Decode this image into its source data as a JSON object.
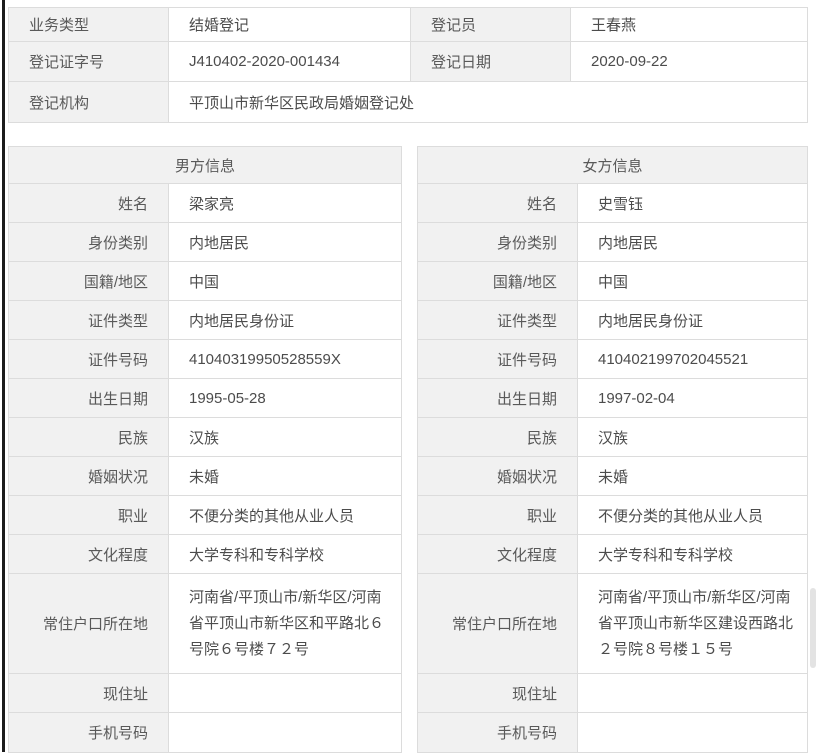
{
  "colors": {
    "label_bg": "#f1f1f1",
    "border": "#dcdcdc",
    "label_text": "#595959",
    "value_text": "#4c4c4c",
    "edge_line": "#1b1b1b"
  },
  "registration": {
    "business_type_label": "业务类型",
    "business_type": "结婚登记",
    "registrar_label": "登记员",
    "registrar": "王春燕",
    "cert_no_label": "登记证字号",
    "cert_no": "J410402-2020-001434",
    "reg_date_label": "登记日期",
    "reg_date": "2020-09-22",
    "agency_label": "登记机构",
    "agency": "平顶山市新华区民政局婚姻登记处"
  },
  "male_section": {
    "title": "男方信息",
    "fields": [
      {
        "key": "name",
        "label": "姓名",
        "value": "梁家亮"
      },
      {
        "key": "identity-category",
        "label": "身份类别",
        "value": "内地居民"
      },
      {
        "key": "nationality-region",
        "label": "国籍/地区",
        "value": "中国"
      },
      {
        "key": "id-type",
        "label": "证件类型",
        "value": "内地居民身份证"
      },
      {
        "key": "id-number",
        "label": "证件号码",
        "value": "41040319950528559X"
      },
      {
        "key": "birth-date",
        "label": "出生日期",
        "value": "1995-05-28"
      },
      {
        "key": "ethnicity",
        "label": "民族",
        "value": "汉族"
      },
      {
        "key": "marital-status",
        "label": "婚姻状况",
        "value": "未婚"
      },
      {
        "key": "occupation",
        "label": "职业",
        "value": "不便分类的其他从业人员"
      },
      {
        "key": "education-level",
        "label": "文化程度",
        "value": "大学专科和专科学校"
      },
      {
        "key": "household-registration-address",
        "label": "常住户口所在地",
        "value": "河南省/平顶山市/新华区/河南省平顶山市新华区和平路北６号院６号楼７２号",
        "tall": true
      },
      {
        "key": "current-address",
        "label": "现住址",
        "value": ""
      },
      {
        "key": "mobile-number",
        "label": "手机号码",
        "value": ""
      }
    ]
  },
  "female_section": {
    "title": "女方信息",
    "fields": [
      {
        "key": "name",
        "label": "姓名",
        "value": "史雪钰"
      },
      {
        "key": "identity-category",
        "label": "身份类别",
        "value": "内地居民"
      },
      {
        "key": "nationality-region",
        "label": "国籍/地区",
        "value": "中国"
      },
      {
        "key": "id-type",
        "label": "证件类型",
        "value": "内地居民身份证"
      },
      {
        "key": "id-number",
        "label": "证件号码",
        "value": "410402199702045521"
      },
      {
        "key": "birth-date",
        "label": "出生日期",
        "value": "1997-02-04"
      },
      {
        "key": "ethnicity",
        "label": "民族",
        "value": "汉族"
      },
      {
        "key": "marital-status",
        "label": "婚姻状况",
        "value": "未婚"
      },
      {
        "key": "occupation",
        "label": "职业",
        "value": "不便分类的其他从业人员"
      },
      {
        "key": "education-level",
        "label": "文化程度",
        "value": "大学专科和专科学校"
      },
      {
        "key": "household-registration-address",
        "label": "常住户口所在地",
        "value": "河南省/平顶山市/新华区/河南省平顶山市新华区建设西路北２号院８号楼１５号",
        "tall": true
      },
      {
        "key": "current-address",
        "label": "现住址",
        "value": ""
      },
      {
        "key": "mobile-number",
        "label": "手机号码",
        "value": ""
      }
    ]
  }
}
